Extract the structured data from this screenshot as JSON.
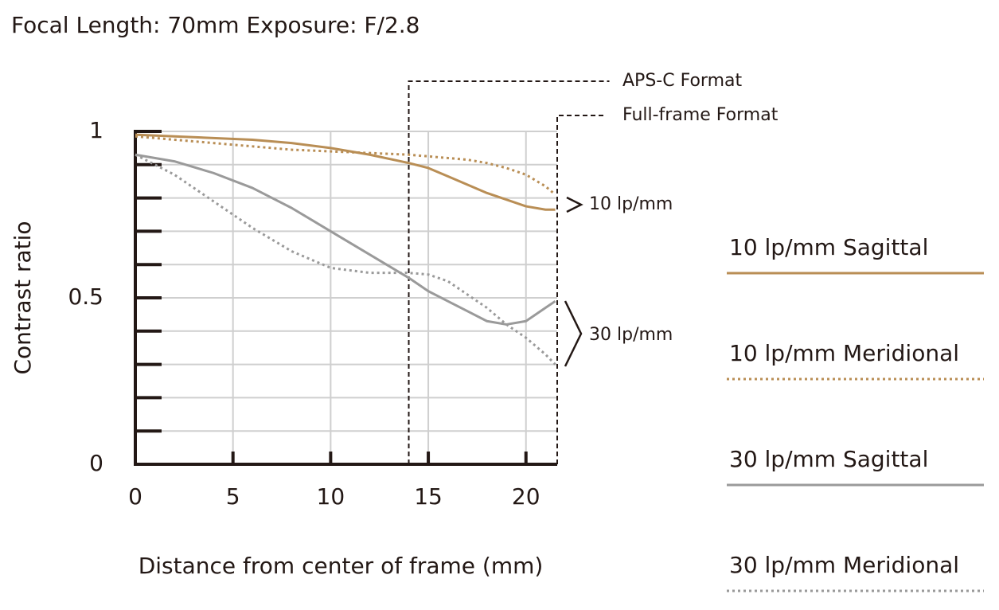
{
  "chart_data": {
    "type": "line",
    "title": "Focal Length: 70mm   Exposure: F/2.8",
    "xlabel": "Distance from center of frame (mm)",
    "ylabel": "Contrast ratio",
    "x": [
      0,
      2,
      4,
      6,
      8,
      10,
      12,
      14,
      15,
      16,
      17,
      18,
      19,
      20,
      21,
      21.5
    ],
    "series": [
      {
        "name": "10 lp/mm Sagittal",
        "color": "#b98e55",
        "dash": false,
        "values": [
          0.99,
          0.985,
          0.98,
          0.975,
          0.965,
          0.95,
          0.93,
          0.905,
          0.89,
          0.865,
          0.84,
          0.815,
          0.795,
          0.775,
          0.765,
          0.765
        ]
      },
      {
        "name": "10 lp/mm Meridional",
        "color": "#b98e55",
        "dash": true,
        "values": [
          0.985,
          0.975,
          0.965,
          0.955,
          0.945,
          0.94,
          0.935,
          0.93,
          0.925,
          0.92,
          0.915,
          0.905,
          0.89,
          0.87,
          0.835,
          0.81
        ]
      },
      {
        "name": "30 lp/mm Sagittal",
        "color": "#9a9a9a",
        "dash": false,
        "values": [
          0.93,
          0.91,
          0.875,
          0.83,
          0.77,
          0.7,
          0.63,
          0.56,
          0.52,
          0.49,
          0.46,
          0.43,
          0.42,
          0.43,
          0.47,
          0.49
        ]
      },
      {
        "name": "30 lp/mm Meridional",
        "color": "#9a9a9a",
        "dash": true,
        "values": [
          0.93,
          0.87,
          0.79,
          0.71,
          0.64,
          0.59,
          0.575,
          0.575,
          0.57,
          0.55,
          0.51,
          0.47,
          0.42,
          0.38,
          0.33,
          0.3
        ]
      }
    ],
    "xlim": [
      0,
      21.6
    ],
    "ylim": [
      0,
      1
    ],
    "xticks": [
      0,
      5,
      10,
      15,
      20
    ],
    "yticks": [
      0,
      0.5,
      1
    ],
    "y_gridlines": [
      0.1,
      0.2,
      0.3,
      0.4,
      0.5,
      0.6,
      0.7,
      0.8,
      0.9,
      1
    ],
    "format_lines": [
      {
        "label": "APS-C Format",
        "x": 14
      },
      {
        "label": "Full-frame Format",
        "x": 21.6
      }
    ],
    "group_labels": [
      "10 lp/mm",
      "30 lp/mm"
    ]
  }
}
